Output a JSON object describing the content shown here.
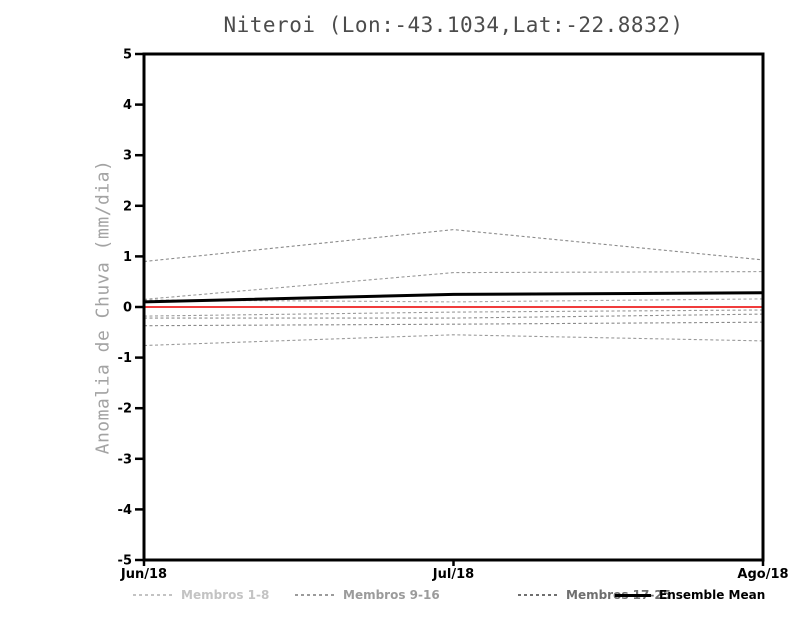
{
  "title": "Niteroi (Lon:-43.1034,Lat:-22.8832)",
  "chart_data": {
    "type": "line",
    "title": "Niteroi (Lon:-43.1034,Lat:-22.8832)",
    "xlabel": "",
    "ylabel": "Anomalia de Chuva (mm/dia)",
    "x_ticklabels": [
      "Jun/18",
      "Jul/18",
      "Ago/18"
    ],
    "ylim": [
      -5,
      5
    ],
    "yticks": [
      5,
      4,
      3,
      2,
      1,
      0,
      -1,
      -2,
      -3,
      -4,
      -5
    ],
    "grid": false,
    "axis_color": "#000000",
    "series": [
      {
        "name": "member-line",
        "group": "Membros 17-25",
        "style": "dashed",
        "color": "#8a8a8a",
        "width": 1.1,
        "values": [
          0.9,
          1.53,
          0.93
        ]
      },
      {
        "name": "member-line",
        "group": "Membros 9-16",
        "style": "dashed",
        "color": "#9a9a9a",
        "width": 1.1,
        "values": [
          0.15,
          0.68,
          0.7
        ]
      },
      {
        "name": "member-line",
        "group": "Membros 1-8",
        "style": "dashed",
        "color": "#a8a8a8",
        "width": 1.1,
        "values": [
          0.14,
          0.1,
          0.16
        ]
      },
      {
        "name": "member-line",
        "group": "Membros 1-8",
        "style": "dashed",
        "color": "#9a9a9a",
        "width": 1.1,
        "values": [
          -0.18,
          -0.1,
          -0.06
        ]
      },
      {
        "name": "member-line",
        "group": "Membros 9-16",
        "style": "dashed",
        "color": "#8f8f8f",
        "width": 1.1,
        "values": [
          -0.22,
          -0.22,
          -0.14
        ]
      },
      {
        "name": "member-line",
        "group": "Membros 17-25",
        "style": "dashed",
        "color": "#8a8a8a",
        "width": 1.1,
        "values": [
          -0.37,
          -0.34,
          -0.3
        ]
      },
      {
        "name": "member-line",
        "group": "Membros 17-25",
        "style": "dashed",
        "color": "#9a9a9a",
        "width": 1.1,
        "values": [
          -0.76,
          -0.55,
          -0.67
        ]
      },
      {
        "name": "zero-line",
        "style": "solid",
        "color": "#f03c3c",
        "width": 2,
        "values": [
          0,
          0,
          0
        ]
      },
      {
        "name": "ensemble-mean-line",
        "style": "solid",
        "color": "#000000",
        "width": 3,
        "values": [
          0.1,
          0.25,
          0.28
        ]
      }
    ],
    "legend": {
      "position": "bottom",
      "items": [
        {
          "label": "Membros 1-8",
          "color": "#c3c3c3",
          "style": "dashed"
        },
        {
          "label": "Membros 9-16",
          "color": "#9b9b9b",
          "style": "dashed"
        },
        {
          "label": "Membros 17-25",
          "color": "#6f6f6f",
          "style": "dashed"
        },
        {
          "label": "Ensemble Mean",
          "color": "#000000",
          "style": "solid"
        }
      ]
    }
  }
}
